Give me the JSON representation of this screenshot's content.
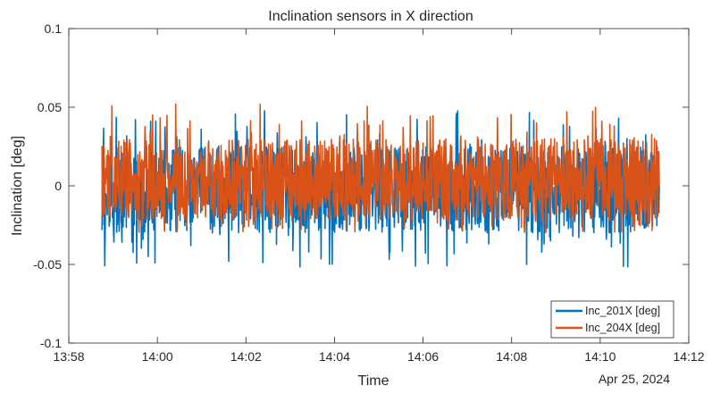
{
  "chart_data": {
    "type": "line",
    "title": "Inclination sensors in X direction",
    "xlabel": "Time",
    "ylabel": "Inclination [deg]",
    "date_label": "Apr 25, 2024",
    "xlim": [
      "13:58",
      "14:12"
    ],
    "ylim": [
      -0.1,
      0.1
    ],
    "x_ticks": [
      "13:58",
      "14:00",
      "14:02",
      "14:04",
      "14:06",
      "14:08",
      "14:10",
      "14:12"
    ],
    "y_ticks": [
      {
        "value": 0.1,
        "label": "0.1"
      },
      {
        "value": 0.05,
        "label": "0.05"
      },
      {
        "value": 0,
        "label": "0"
      },
      {
        "value": -0.05,
        "label": "-0.05"
      },
      {
        "value": -0.1,
        "label": "-0.1"
      }
    ],
    "grid": false,
    "legend_position": "bottom-right",
    "x_range": {
      "start": "13:58:45",
      "end": "14:11:20"
    },
    "series": [
      {
        "name": "Inc_201X [deg]",
        "color": "#0072BD",
        "typical_range": [
          -0.03,
          0.025
        ],
        "max": 0.048,
        "min": -0.052
      },
      {
        "name": "Inc_204X [deg]",
        "color": "#D95319",
        "typical_range": [
          -0.022,
          0.03
        ],
        "max": 0.052,
        "min": -0.03
      }
    ]
  }
}
